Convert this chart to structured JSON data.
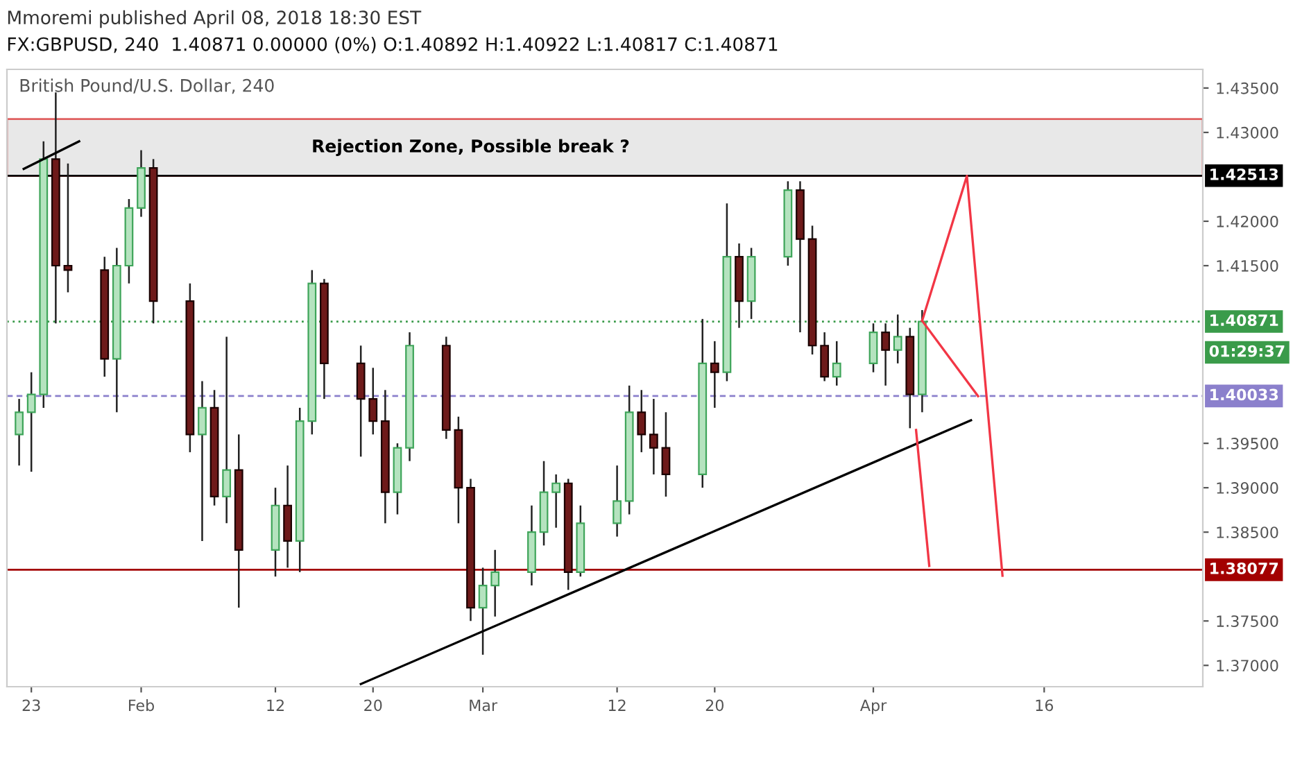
{
  "chart_data": {
    "type": "candlestick",
    "title": "Mmoremi published April 08, 2018 18:30 EST",
    "subtitle": "FX:GBPUSD, 240  1.40871 0.00000 (0%) O:1.40892 H:1.40922 L:1.40817 C:1.40871",
    "annotations": [
      "British Pound/U.S. Dollar, 240",
      "01:29:37"
    ],
    "x": [
      "2018-01-22",
      "2018-01-23",
      "2018-01-24",
      "2018-01-25",
      "2018-01-26",
      "2018-01-29",
      "2018-01-30",
      "2018-01-31",
      "2018-02-01",
      "2018-02-02",
      "2018-02-05",
      "2018-02-06",
      "2018-02-07",
      "2018-02-08",
      "2018-02-09",
      "2018-02-12",
      "2018-02-13",
      "2018-02-14",
      "2018-02-15",
      "2018-02-16",
      "2018-02-19",
      "2018-02-20",
      "2018-02-21",
      "2018-02-22",
      "2018-02-23",
      "2018-02-26",
      "2018-02-27",
      "2018-02-28",
      "2018-03-01",
      "2018-03-02",
      "2018-03-05",
      "2018-03-06",
      "2018-03-07",
      "2018-03-08",
      "2018-03-09",
      "2018-03-12",
      "2018-03-13",
      "2018-03-14",
      "2018-03-15",
      "2018-03-16",
      "2018-03-19",
      "2018-03-20",
      "2018-03-21",
      "2018-03-22",
      "2018-03-23",
      "2018-03-26",
      "2018-03-27",
      "2018-03-28",
      "2018-03-29",
      "2018-03-30",
      "2018-04-02",
      "2018-04-03",
      "2018-04-04",
      "2018-04-05",
      "2018-04-06"
    ],
    "ohlc": [
      [
        1.396,
        1.4,
        1.3925,
        1.3985
      ],
      [
        1.3985,
        1.403,
        1.3918,
        1.4005
      ],
      [
        1.4005,
        1.429,
        1.399,
        1.427
      ],
      [
        1.427,
        1.4345,
        1.4085,
        1.415
      ],
      [
        1.415,
        1.4265,
        1.412,
        1.4145
      ],
      [
        1.4145,
        1.416,
        1.4025,
        1.4045
      ],
      [
        1.4045,
        1.417,
        1.3985,
        1.415
      ],
      [
        1.415,
        1.4225,
        1.413,
        1.4215
      ],
      [
        1.4215,
        1.428,
        1.4205,
        1.426
      ],
      [
        1.426,
        1.427,
        1.4085,
        1.411
      ],
      [
        1.411,
        1.413,
        1.394,
        1.396
      ],
      [
        1.396,
        1.402,
        1.384,
        1.399
      ],
      [
        1.399,
        1.401,
        1.388,
        1.389
      ],
      [
        1.389,
        1.407,
        1.386,
        1.392
      ],
      [
        1.392,
        1.396,
        1.3765,
        1.383
      ],
      [
        1.383,
        1.39,
        1.38,
        1.388
      ],
      [
        1.388,
        1.3925,
        1.381,
        1.384
      ],
      [
        1.384,
        1.399,
        1.3805,
        1.3975
      ],
      [
        1.3975,
        1.4145,
        1.396,
        1.413
      ],
      [
        1.413,
        1.4135,
        1.4,
        1.404
      ],
      [
        1.404,
        1.406,
        1.3935,
        1.4
      ],
      [
        1.4,
        1.4035,
        1.396,
        1.3975
      ],
      [
        1.3975,
        1.401,
        1.386,
        1.3895
      ],
      [
        1.3895,
        1.395,
        1.387,
        1.3945
      ],
      [
        1.3945,
        1.4075,
        1.393,
        1.406
      ],
      [
        1.406,
        1.407,
        1.3955,
        1.3965
      ],
      [
        1.3965,
        1.398,
        1.386,
        1.39
      ],
      [
        1.39,
        1.391,
        1.375,
        1.3765
      ],
      [
        1.3765,
        1.381,
        1.3712,
        1.379
      ],
      [
        1.379,
        1.383,
        1.3755,
        1.3805
      ],
      [
        1.3805,
        1.388,
        1.379,
        1.385
      ],
      [
        1.385,
        1.393,
        1.3835,
        1.3895
      ],
      [
        1.3895,
        1.3915,
        1.3855,
        1.3905
      ],
      [
        1.3905,
        1.391,
        1.3785,
        1.3805
      ],
      [
        1.3805,
        1.388,
        1.38,
        1.386
      ],
      [
        1.386,
        1.3925,
        1.3845,
        1.3885
      ],
      [
        1.3885,
        1.4015,
        1.387,
        1.3985
      ],
      [
        1.3985,
        1.401,
        1.394,
        1.396
      ],
      [
        1.396,
        1.4,
        1.3915,
        1.3945
      ],
      [
        1.3945,
        1.3985,
        1.389,
        1.3915
      ],
      [
        1.3915,
        1.409,
        1.39,
        1.404
      ],
      [
        1.404,
        1.4065,
        1.399,
        1.403
      ],
      [
        1.403,
        1.422,
        1.402,
        1.416
      ],
      [
        1.416,
        1.4175,
        1.408,
        1.411
      ],
      [
        1.411,
        1.417,
        1.409,
        1.416
      ],
      [
        1.416,
        1.4245,
        1.415,
        1.4235
      ],
      [
        1.4235,
        1.4245,
        1.4075,
        1.418
      ],
      [
        1.418,
        1.4195,
        1.405,
        1.406
      ],
      [
        1.406,
        1.4075,
        1.402,
        1.4025
      ],
      [
        1.4025,
        1.4065,
        1.4015,
        1.404
      ],
      [
        1.404,
        1.4085,
        1.403,
        1.4075
      ],
      [
        1.4075,
        1.4085,
        1.4015,
        1.4055
      ],
      [
        1.4055,
        1.4095,
        1.404,
        1.407
      ],
      [
        1.407,
        1.408,
        1.3967,
        1.4005
      ],
      [
        1.4005,
        1.41,
        1.3985,
        1.40871
      ]
    ],
    "series": [
      {
        "type": "line",
        "color": "#000000",
        "x": [
          "2018-02-19",
          "2018-04-10"
        ],
        "values": [
          1.3679,
          1.3976
        ]
      },
      {
        "type": "line",
        "color": "#000000",
        "x": [
          "2018-01-22T09:00",
          "2018-01-26T22:00"
        ],
        "values": [
          1.4259,
          1.429
        ]
      },
      {
        "type": "line",
        "color": "#f23645",
        "x": [
          "2018-04-06",
          "2018-04-09T16:00",
          "2018-04-12T14:00"
        ],
        "values": [
          1.4088,
          1.4251,
          1.3801
        ]
      },
      {
        "type": "line",
        "color": "#f23645",
        "x": [
          "2018-04-06",
          "2018-04-10T14:00"
        ],
        "values": [
          1.4088,
          1.4003
        ]
      },
      {
        "type": "line",
        "color": "#f23645",
        "x": [
          "2018-04-05T12:00",
          "2018-04-06T14:00"
        ],
        "values": [
          1.3965,
          1.3812
        ]
      }
    ],
    "ref_lines": [
      {
        "axis": "y",
        "value": 1.42513,
        "label": "1.42513",
        "color": "#000000",
        "line_style": "solid"
      },
      {
        "axis": "y",
        "value": 1.40871,
        "label": "1.40871",
        "color": "#3a9b4a",
        "line_style": "dotted"
      },
      {
        "axis": "y",
        "value": 1.40033,
        "label": "1.40033",
        "color": "#8b80cc",
        "line_style": "dashed"
      },
      {
        "axis": "y",
        "value": 1.38077,
        "label": "1.38077",
        "color": "#a30000",
        "line_style": "solid"
      }
    ],
    "bands": [
      {
        "axis": "y",
        "from": 1.4251,
        "to": 1.4315,
        "label": "Rejection Zone, Possible break ?",
        "color": "#e8e8e8"
      }
    ],
    "xlim": [
      "2018-01-21",
      "2018-04-29"
    ],
    "xticks": [
      {
        "value": "2018-01-23",
        "label": "23"
      },
      {
        "value": "2018-02-01",
        "label": "Feb"
      },
      {
        "value": "2018-02-12",
        "label": "12"
      },
      {
        "value": "2018-02-20",
        "label": "20"
      },
      {
        "value": "2018-03-01",
        "label": "Mar"
      },
      {
        "value": "2018-03-12",
        "label": "12"
      },
      {
        "value": "2018-03-20",
        "label": "20"
      },
      {
        "value": "2018-04-02",
        "label": "Apr"
      },
      {
        "value": "2018-04-16",
        "label": "16"
      }
    ],
    "ylim": [
      1.3676,
      1.4371
    ],
    "yticks": [
      {
        "value": 1.37,
        "label": "1.37000"
      },
      {
        "value": 1.375,
        "label": "1.37500"
      },
      {
        "value": 1.385,
        "label": "1.38500"
      },
      {
        "value": 1.39,
        "label": "1.39000"
      },
      {
        "value": 1.395,
        "label": "1.39500"
      },
      {
        "value": 1.415,
        "label": "1.41500"
      },
      {
        "value": 1.42,
        "label": "1.42000"
      },
      {
        "value": 1.43,
        "label": "1.43000"
      },
      {
        "value": 1.435,
        "label": "1.43500"
      }
    ]
  }
}
